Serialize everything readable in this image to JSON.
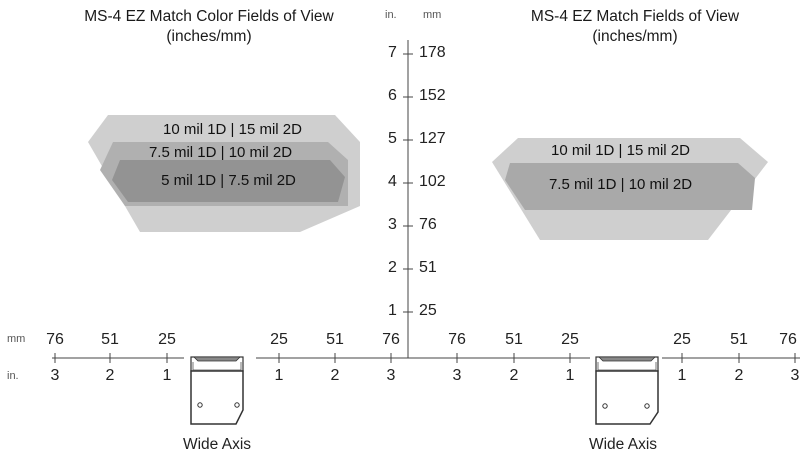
{
  "left_diagram": {
    "title_line1": "MS-4 EZ Match Color Fields of View",
    "title_line2": "(inches/mm)",
    "zones": [
      {
        "label": "10 mil 1D | 15 mil 2D",
        "color": "#cfcfcf"
      },
      {
        "label": "7.5 mil 1D | 10 mil 2D",
        "color": "#b0b0b0"
      },
      {
        "label": "5 mil 1D | 7.5 mil 2D",
        "color": "#939393"
      }
    ],
    "caption": "Wide Axis"
  },
  "right_diagram": {
    "title_line1": "MS-4 EZ Match Fields of View",
    "title_line2": "(inches/mm)",
    "zones": [
      {
        "label": "10 mil 1D | 15 mil 2D",
        "color": "#cfcfcf"
      },
      {
        "label": "7.5 mil 1D | 10 mil 2D",
        "color": "#a9a9a9"
      }
    ],
    "caption": "Wide Axis"
  },
  "vertical_axis": {
    "unit_in": "in.",
    "unit_mm": "mm",
    "ticks": [
      {
        "in": "7",
        "mm": "178"
      },
      {
        "in": "6",
        "mm": "152"
      },
      {
        "in": "5",
        "mm": "127"
      },
      {
        "in": "4",
        "mm": "102"
      },
      {
        "in": "3",
        "mm": "76"
      },
      {
        "in": "2",
        "mm": "51"
      },
      {
        "in": "1",
        "mm": "25"
      }
    ]
  },
  "horizontal_axis": {
    "unit_mm": "mm",
    "unit_in": "in.",
    "left_mm": [
      "76",
      "51",
      "25"
    ],
    "left_in": [
      "3",
      "2",
      "1"
    ],
    "right_mm": [
      "25",
      "51",
      "76"
    ],
    "right_in": [
      "1",
      "2",
      "3"
    ]
  }
}
